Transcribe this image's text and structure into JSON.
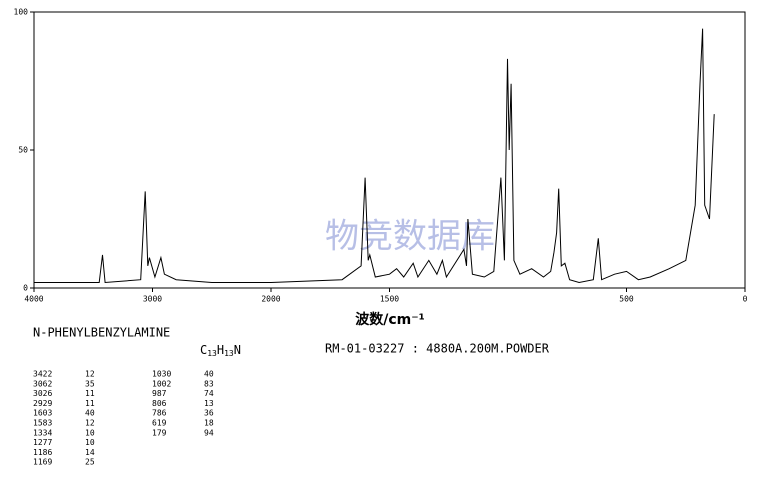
{
  "chart_data": {
    "type": "line",
    "name": "N-PHENYLBENZYLAMINE",
    "formula": {
      "c": "C",
      "c_n": "13",
      "h": "H",
      "h_n": "13",
      "n": "N"
    },
    "info": "RM-01-03227 : 4880A.200M.POWDER",
    "xlabel": "波数/cm⁻¹",
    "watermark": "物竞数据库",
    "xlim": [
      4000,
      0
    ],
    "scale_change_at": 2000,
    "xticks": [
      4000,
      3000,
      2000,
      1500,
      500,
      0
    ],
    "ylim": [
      0,
      100
    ],
    "yticks": [
      0,
      50,
      100
    ],
    "color": "#000000",
    "x": [
      4000,
      3450,
      3422,
      3400,
      3100,
      3062,
      3040,
      3026,
      2980,
      2929,
      2900,
      2800,
      2500,
      2000,
      1700,
      1620,
      1603,
      1590,
      1583,
      1560,
      1500,
      1470,
      1440,
      1400,
      1380,
      1334,
      1300,
      1277,
      1260,
      1186,
      1175,
      1169,
      1150,
      1100,
      1060,
      1030,
      1015,
      1002,
      995,
      987,
      975,
      950,
      900,
      850,
      820,
      806,
      795,
      786,
      775,
      760,
      740,
      700,
      640,
      619,
      605,
      550,
      500,
      450,
      400,
      320,
      250,
      210,
      190,
      179,
      170,
      150,
      130
    ],
    "values": [
      2,
      2,
      12,
      2,
      3,
      35,
      8,
      11,
      4,
      11,
      5,
      3,
      2,
      2,
      3,
      8,
      40,
      10,
      12,
      4,
      5,
      7,
      4,
      9,
      4,
      10,
      5,
      10,
      4,
      14,
      8,
      25,
      5,
      4,
      6,
      40,
      10,
      83,
      50,
      74,
      10,
      5,
      7,
      4,
      6,
      13,
      20,
      36,
      8,
      9,
      3,
      2,
      3,
      18,
      3,
      5,
      6,
      3,
      4,
      7,
      10,
      30,
      74,
      94,
      30,
      25,
      63
    ],
    "peaks": [
      [
        "3422",
        "12"
      ],
      [
        "3062",
        "35"
      ],
      [
        "3026",
        "11"
      ],
      [
        "2929",
        "11"
      ],
      [
        "1603",
        "40"
      ],
      [
        "1583",
        "12"
      ],
      [
        "1334",
        "10"
      ],
      [
        "1277",
        "10"
      ],
      [
        "1186",
        "14"
      ],
      [
        "1169",
        "25"
      ],
      [
        "1030",
        "40"
      ],
      [
        "1002",
        "83"
      ],
      [
        "987",
        "74"
      ],
      [
        "806",
        "13"
      ],
      [
        "786",
        "36"
      ],
      [
        "619",
        "18"
      ],
      [
        "179",
        "94"
      ]
    ]
  }
}
